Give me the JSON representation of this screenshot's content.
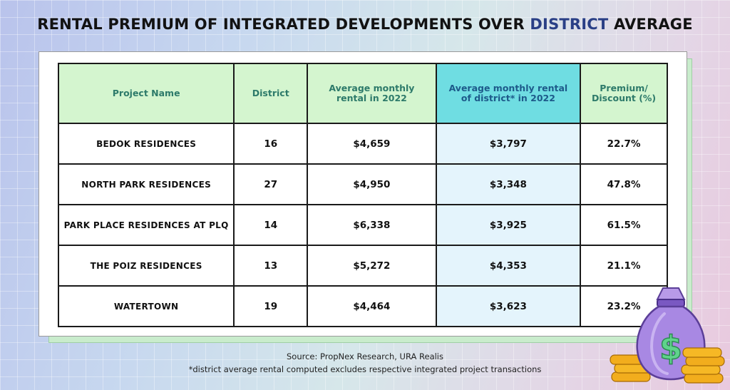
{
  "title": {
    "part1": "RENTAL PREMIUM OF INTEGRATED DEVELOPMENTS OVER ",
    "accent": "DISTRICT",
    "part2": " AVERAGE"
  },
  "chart_data": {
    "type": "table",
    "columns": [
      "Project Name",
      "District",
      "Average monthly rental in 2022",
      "Average monthly rental of district* in 2022",
      "Premium/ Discount (%)"
    ],
    "rows": [
      {
        "name": "BEDOK RESIDENCES",
        "district": "16",
        "rental": "$4,659",
        "district_rental": "$3,797",
        "premium": "22.7%"
      },
      {
        "name": "NORTH PARK RESIDENCES",
        "district": "27",
        "rental": "$4,950",
        "district_rental": "$3,348",
        "premium": "47.8%"
      },
      {
        "name": "PARK PLACE RESIDENCES AT PLQ",
        "district": "14",
        "rental": "$6,338",
        "district_rental": "$3,925",
        "premium": "61.5%"
      },
      {
        "name": "THE POIZ RESIDENCES",
        "district": "13",
        "rental": "$5,272",
        "district_rental": "$4,353",
        "premium": "21.1%"
      },
      {
        "name": "WATERTOWN",
        "district": "19",
        "rental": "$4,464",
        "district_rental": "$3,623",
        "premium": "23.2%"
      }
    ]
  },
  "source": "Source: PropNex Research, URA Realis",
  "footnote": "*district average rental computed excludes respective integrated project transactions",
  "colors": {
    "header_green": "#d4f5cf",
    "header_cyan": "#6fdde2",
    "cell_light_blue": "#e4f4fc",
    "title_accent": "#2a3f86"
  },
  "decor": {
    "icon": "money-bag-with-coins-icon",
    "glyph": "$"
  }
}
